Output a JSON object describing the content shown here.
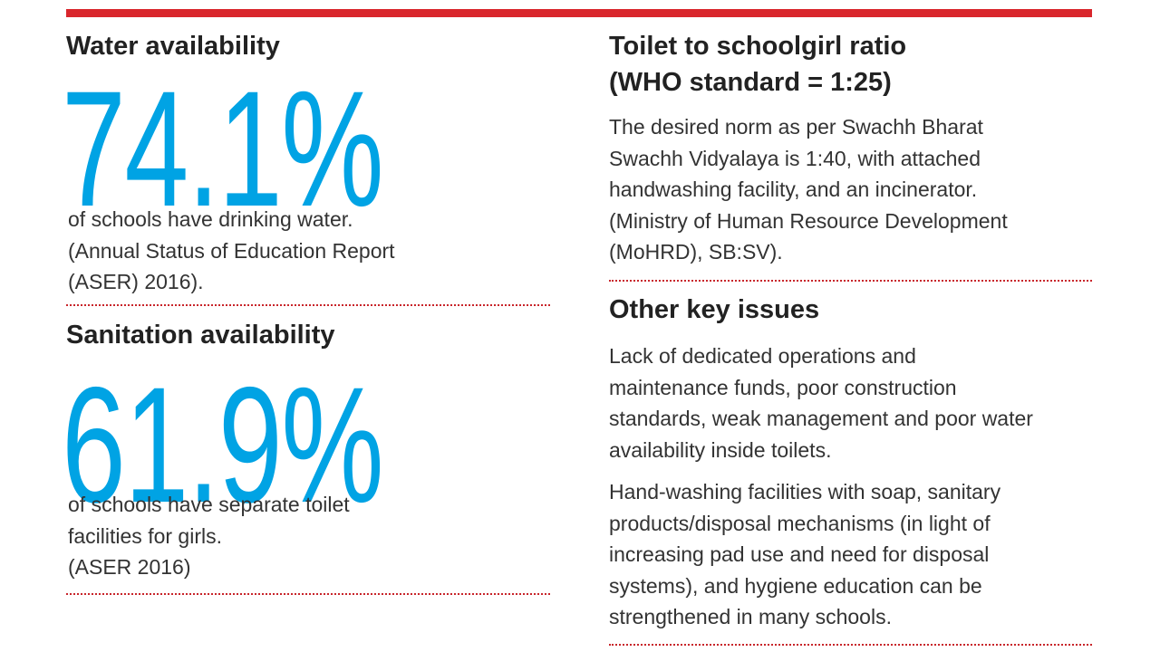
{
  "water": {
    "heading": "Water availability",
    "figure": "74.1%",
    "lines": [
      "of schools have drinking water.",
      "(Annual Status of Education Report",
      "(ASER) 2016)."
    ]
  },
  "sanitation": {
    "heading": "Sanitation availability",
    "figure": "61.9%",
    "lines": [
      "of schools have separate toilet",
      "facilities for girls.",
      "(ASER 2016)"
    ]
  },
  "toilet_ratio": {
    "heading": [
      "Toilet to schoolgirl ratio",
      "(WHO standard = 1:25)"
    ],
    "lines": [
      "The desired norm as per Swachh Bharat",
      "Swachh Vidyalaya is 1:40, with attached",
      "handwashing facility, and an incinerator.",
      "(Ministry of Human Resource Development",
      "(MoHRD), SB:SV)."
    ]
  },
  "other_issues": {
    "heading": "Other key issues",
    "paragraphs": [
      [
        "Lack of dedicated operations and",
        "maintenance funds, poor construction",
        "standards, weak management and poor water",
        "availability inside toilets."
      ],
      [
        "Hand-washing facilities with soap, sanitary",
        "products/disposal mechanisms (in light of",
        "increasing pad use and need for disposal",
        "systems), and hygiene education can be",
        "strengthened in many schools."
      ]
    ]
  }
}
